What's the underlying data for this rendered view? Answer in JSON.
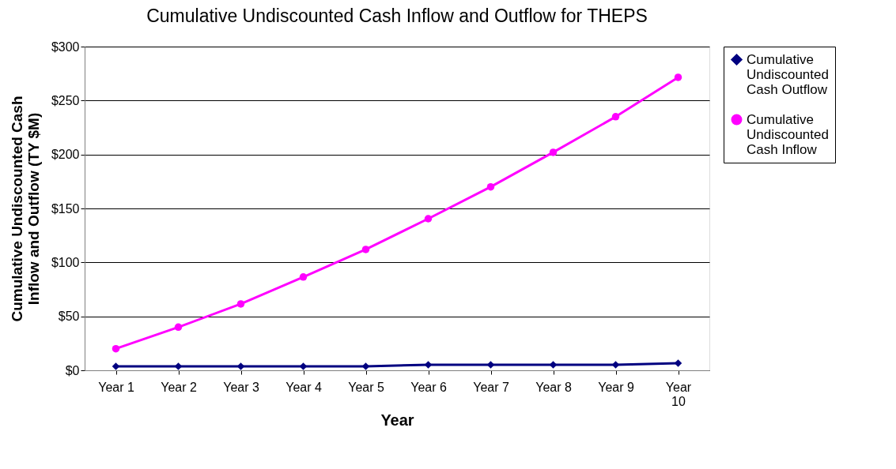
{
  "chart_data": {
    "type": "line",
    "title": "Cumulative Undiscounted Cash Inflow and Outflow for THEPS",
    "xlabel": "Year",
    "ylabel": "Cumulative Undiscounted Cash Inflow and Outflow (TY $M)",
    "categories": [
      "Year 1",
      "Year 2",
      "Year 3",
      "Year 4",
      "Year 5",
      "Year 6",
      "Year 7",
      "Year 8",
      "Year 9",
      "Year 10"
    ],
    "series": [
      {
        "name": "Cumulative Undiscounted Cash Outflow",
        "color": "#000080",
        "marker": "diamond",
        "values": [
          3.7,
          3.7,
          3.7,
          3.7,
          3.7,
          5.1,
          5.1,
          5.1,
          5.1,
          6.6
        ]
      },
      {
        "name": "Cumulative Undiscounted Cash Inflow",
        "color": "#ff00ff",
        "marker": "circle",
        "values": [
          20,
          40,
          61.5,
          86.5,
          112,
          140.5,
          170,
          202,
          235,
          271.5
        ]
      }
    ],
    "ylim": [
      0,
      300
    ],
    "yticks": [
      {
        "value": 0,
        "label": "$0"
      },
      {
        "value": 50,
        "label": "$50"
      },
      {
        "value": 100,
        "label": "$100"
      },
      {
        "value": 150,
        "label": "$150"
      },
      {
        "value": 200,
        "label": "$200"
      },
      {
        "value": 250,
        "label": "$250"
      },
      {
        "value": 300,
        "label": "$300"
      }
    ],
    "grid": "y",
    "legend": "right"
  }
}
